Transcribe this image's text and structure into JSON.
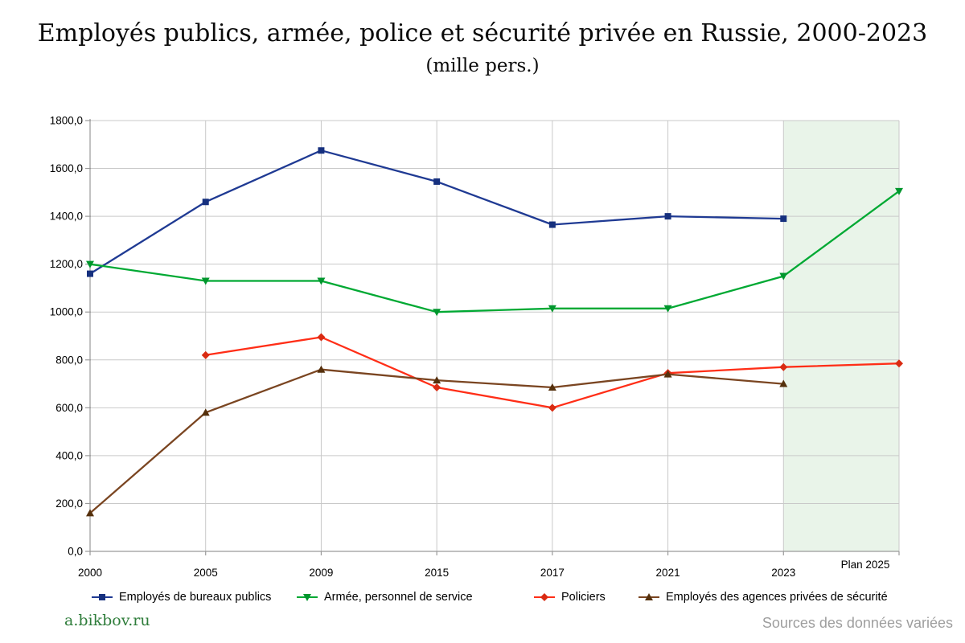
{
  "title": "Employés publics, armée, police et sécurité privée en Russie, 2000-2023",
  "subtitle": "(mille pers.)",
  "footer": {
    "source_left": "a.bikbov.ru",
    "source_right": "Sources des données variées"
  },
  "chart_data": {
    "type": "line",
    "categories": [
      "2000",
      "2005",
      "2009",
      "2015",
      "2017",
      "2021",
      "2023",
      "Plan 2025"
    ],
    "series": [
      {
        "name": "Employés de bureaux publics",
        "color": "#1f3a93",
        "marker_color": "#16307e",
        "marker": "square",
        "values": [
          1160,
          1460,
          1675,
          1545,
          1365,
          1400,
          1390,
          null
        ]
      },
      {
        "name": "Armée, personnel de service",
        "color": "#00a933",
        "marker_color": "#00962d",
        "marker": "triangle-down",
        "values": [
          1200,
          1130,
          1130,
          1000,
          1015,
          1015,
          1150,
          1505
        ]
      },
      {
        "name": "Policiers",
        "color": "#ff2e17",
        "marker_color": "#d92b12",
        "marker": "diamond",
        "values": [
          null,
          820,
          895,
          685,
          600,
          745,
          770,
          785
        ]
      },
      {
        "name": "Employés des agences privées de sécurité",
        "color": "#7a4521",
        "marker_color": "#55300c",
        "marker": "triangle-up",
        "values": [
          160,
          580,
          760,
          715,
          685,
          740,
          700,
          null
        ]
      }
    ],
    "ylim": [
      0,
      1800
    ],
    "ytick_step": 200,
    "ylabel_format": "comma-decimal",
    "grid": true,
    "legend_position": "bottom",
    "plan_region": {
      "start_category": "2023",
      "label": "Plan 2025",
      "color": "#e9f4e9"
    },
    "colors": {
      "gridline": "#c9c9c9",
      "axis": "#9a9a9a",
      "tick_label": "#000000"
    }
  }
}
